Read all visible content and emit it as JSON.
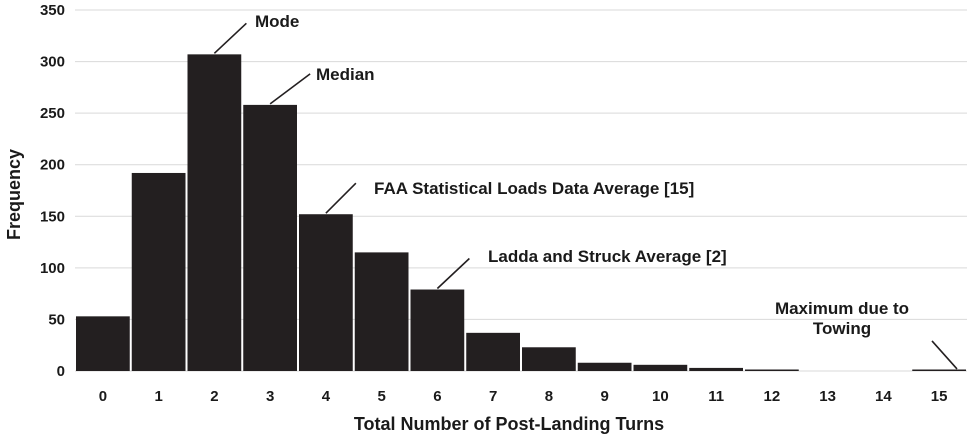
{
  "chart_data": {
    "type": "bar",
    "title": "",
    "xlabel": "Total Number of Post-Landing Turns",
    "ylabel": "Frequency",
    "categories": [
      "0",
      "1",
      "2",
      "3",
      "4",
      "5",
      "6",
      "7",
      "8",
      "9",
      "10",
      "11",
      "12",
      "13",
      "14",
      "15"
    ],
    "values": [
      53,
      192,
      307,
      258,
      152,
      115,
      79,
      37,
      23,
      8,
      6,
      3,
      1,
      0,
      0,
      1
    ],
    "ylim": [
      0,
      350
    ],
    "yticks": [
      0,
      50,
      100,
      150,
      200,
      250,
      300,
      350
    ],
    "grid": true,
    "bar_color": "#231f20",
    "annotations": [
      {
        "lines": [
          "Mode"
        ],
        "category_index": 2
      },
      {
        "lines": [
          "Median"
        ],
        "category_index": 3
      },
      {
        "lines": [
          "FAA Statistical Loads Data Average [15]"
        ],
        "category_index": 4
      },
      {
        "lines": [
          "Ladda and Struck Average [2]"
        ],
        "category_index": 6
      },
      {
        "lines": [
          "Maximum due to",
          "Towing"
        ],
        "category_index": 15
      }
    ]
  }
}
